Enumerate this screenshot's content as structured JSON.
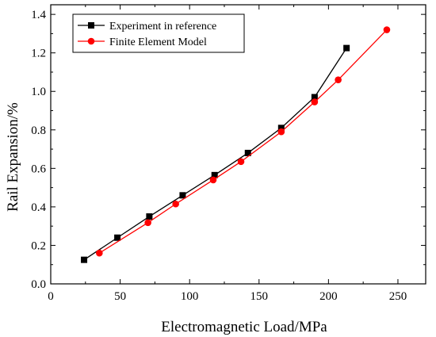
{
  "chart_data": {
    "type": "line",
    "xlabel": "Electromagnetic Load/MPa",
    "ylabel": "Rail Expansion/%",
    "xlim": [
      0,
      270
    ],
    "ylim": [
      0,
      1.45
    ],
    "xticks": [
      0,
      50,
      100,
      150,
      200,
      250
    ],
    "yticks": [
      0.0,
      0.2,
      0.4,
      0.6,
      0.8,
      1.0,
      1.2,
      1.4
    ],
    "xtick_labels": [
      "0",
      "50",
      "100",
      "150",
      "200",
      "250"
    ],
    "ytick_labels": [
      "0.0",
      "0.2",
      "0.4",
      "0.6",
      "0.8",
      "1.0",
      "1.2",
      "1.4"
    ],
    "grid": false,
    "legend_position": "top-left",
    "series": [
      {
        "name": "Experiment in reference",
        "marker": "square",
        "color": "#000000",
        "x": [
          24,
          48,
          71,
          95,
          118,
          142,
          166,
          190,
          213
        ],
        "y": [
          0.125,
          0.24,
          0.35,
          0.46,
          0.565,
          0.68,
          0.81,
          0.97,
          1.225
        ]
      },
      {
        "name": "Finite Element Model",
        "marker": "circle",
        "color": "#ff0000",
        "x": [
          35,
          70,
          90,
          117,
          137,
          166,
          190,
          207,
          242
        ],
        "y": [
          0.16,
          0.318,
          0.415,
          0.54,
          0.635,
          0.79,
          0.945,
          1.06,
          1.32
        ]
      }
    ]
  }
}
